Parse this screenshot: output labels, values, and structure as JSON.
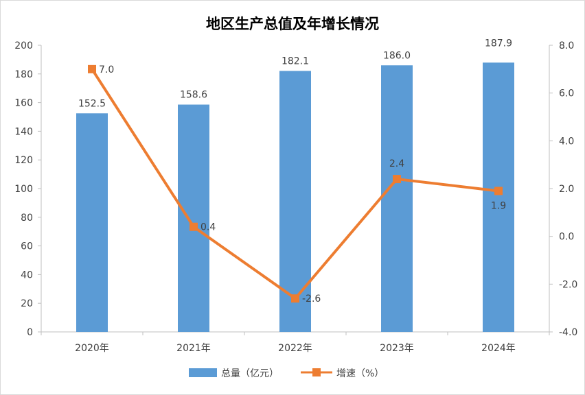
{
  "chart_data": {
    "type": "bar+line",
    "title": "地区生产总值及年增长情况",
    "categories": [
      "2020年",
      "2021年",
      "2022年",
      "2023年",
      "2024年"
    ],
    "series": [
      {
        "name": "总量（亿元）",
        "type": "bar",
        "axis": "left",
        "color": "#5B9BD5",
        "values": [
          152.5,
          158.6,
          182.1,
          186.0,
          187.9
        ],
        "labels": [
          "152.5",
          "158.6",
          "182.1",
          "186.0",
          "187.9"
        ]
      },
      {
        "name": "增速（%）",
        "type": "line",
        "axis": "right",
        "color": "#ED7D31",
        "values": [
          7.0,
          0.4,
          -2.6,
          2.4,
          1.9
        ],
        "labels": [
          "7.0",
          "0.4",
          "-2.6",
          "2.4",
          "1.9"
        ]
      }
    ],
    "y_left": {
      "min": 0,
      "max": 200,
      "ticks": [
        "0",
        "20",
        "40",
        "60",
        "80",
        "100",
        "120",
        "140",
        "160",
        "180",
        "200"
      ]
    },
    "y_right": {
      "min": -4,
      "max": 8,
      "ticks": [
        "-4.0",
        "-2.0",
        "0.0",
        "2.0",
        "4.0",
        "6.0",
        "8.0"
      ]
    },
    "grid": false,
    "legend": "bottom"
  }
}
